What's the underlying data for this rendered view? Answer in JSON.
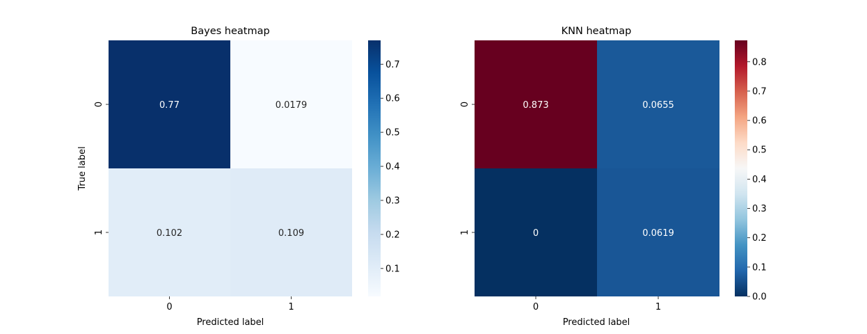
{
  "chart_data": [
    {
      "type": "heatmap",
      "title": "Bayes heatmap",
      "xlabel": "Predicted label",
      "ylabel": "True label",
      "x_categories": [
        "0",
        "1"
      ],
      "y_categories": [
        "0",
        "1"
      ],
      "values": [
        [
          0.77,
          0.0179
        ],
        [
          0.102,
          0.109
        ]
      ],
      "value_labels": [
        [
          "0.77",
          "0.0179"
        ],
        [
          "0.102",
          "0.109"
        ]
      ],
      "colormap": "Blues",
      "colorbar": {
        "min": 0.0179,
        "max": 0.77,
        "ticks": [
          0.1,
          0.2,
          0.3,
          0.4,
          0.5,
          0.6,
          0.7
        ],
        "tick_labels": [
          "0.1",
          "0.2",
          "0.3",
          "0.4",
          "0.5",
          "0.6",
          "0.7"
        ]
      }
    },
    {
      "type": "heatmap",
      "title": "KNN heatmap",
      "xlabel": "Predicted label",
      "ylabel": "",
      "x_categories": [
        "0",
        "1"
      ],
      "y_categories": [
        "0",
        "1"
      ],
      "values": [
        [
          0.873,
          0.0655
        ],
        [
          0,
          0.0619
        ]
      ],
      "value_labels": [
        [
          "0.873",
          "0.0655"
        ],
        [
          "0",
          "0.0619"
        ]
      ],
      "colormap": "RdBu_r",
      "colorbar": {
        "min": 0,
        "max": 0.873,
        "ticks": [
          0.0,
          0.1,
          0.2,
          0.3,
          0.4,
          0.5,
          0.6,
          0.7,
          0.8
        ],
        "tick_labels": [
          "0.0",
          "0.1",
          "0.2",
          "0.3",
          "0.4",
          "0.5",
          "0.6",
          "0.7",
          "0.8"
        ]
      }
    }
  ]
}
